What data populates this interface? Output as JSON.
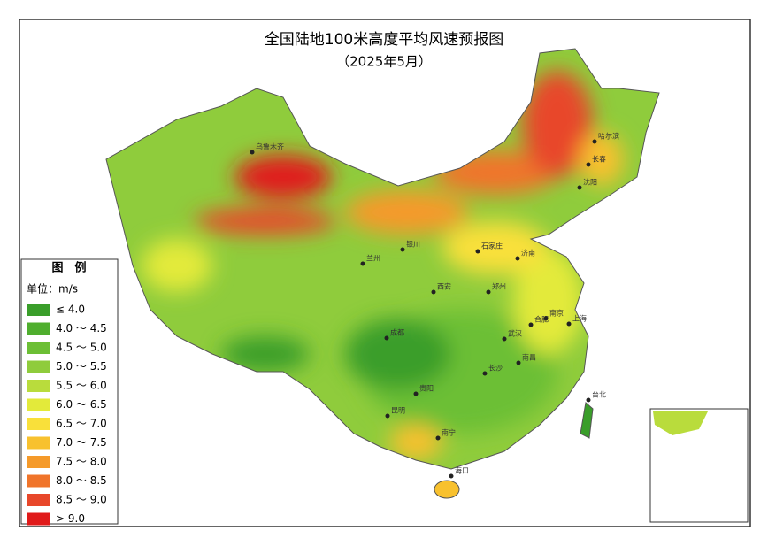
{
  "header": {
    "title": "全国陆地100米高度平均风速预报图",
    "subtitle": "（2025年5月）"
  },
  "legend": {
    "title": "图　例",
    "unit": "单位：m/s",
    "items": [
      {
        "label": "≤ 4.0",
        "color": "#3a9e2a"
      },
      {
        "label": "4.0 ～ 4.5",
        "color": "#4fae2e"
      },
      {
        "label": "4.5 ～ 5.0",
        "color": "#6cbf35"
      },
      {
        "label": "5.0 ～ 5.5",
        "color": "#8fcc3c"
      },
      {
        "label": "5.5 ～ 6.0",
        "color": "#b9dc3c"
      },
      {
        "label": "6.0 ～ 6.5",
        "color": "#e3ea3a"
      },
      {
        "label": "6.5 ～ 7.0",
        "color": "#f9e03a"
      },
      {
        "label": "7.0 ～ 7.5",
        "color": "#f8c12e"
      },
      {
        "label": "7.5 ～ 8.0",
        "color": "#f59a2a"
      },
      {
        "label": "8.0 ～ 8.5",
        "color": "#f0742a"
      },
      {
        "label": "8.5 ～ 9.0",
        "color": "#e8472a"
      },
      {
        "label": "> 9.0",
        "color": "#e01a1a"
      }
    ]
  },
  "cities": [
    "乌鲁木齐",
    "哈尔滨",
    "长春",
    "沈阳",
    "石家庄",
    "济南",
    "银川",
    "兰州",
    "西安",
    "郑州",
    "合肥",
    "南京",
    "上海",
    "成都",
    "武汉",
    "长沙",
    "南昌",
    "贵阳",
    "昆明",
    "南宁",
    "海口",
    "台北"
  ]
}
